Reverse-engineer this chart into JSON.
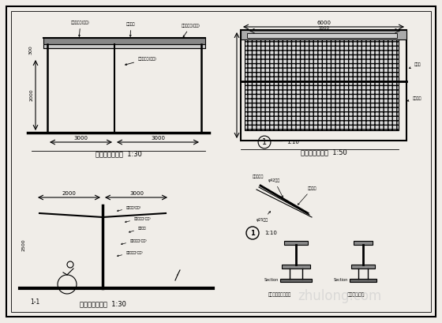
{
  "bg_color": "#f0ede8",
  "border_color": "#000000",
  "line_color": "#333333",
  "watermark": "zhulong.com",
  "label1": "自行车棚正立面  1:30",
  "label2": "车棚俧立面平面  1:50",
  "label3": "自行车棚展开图  1:30",
  "label4": "图示：纲格双向平接",
  "label5": "自行车停车架",
  "top_label0": "六角管框架(局部)",
  "top_label1": "彩钢瓦棒",
  "top_label2": "六角管框架(局部)",
  "mid_label": "六角管框架(局部)"
}
